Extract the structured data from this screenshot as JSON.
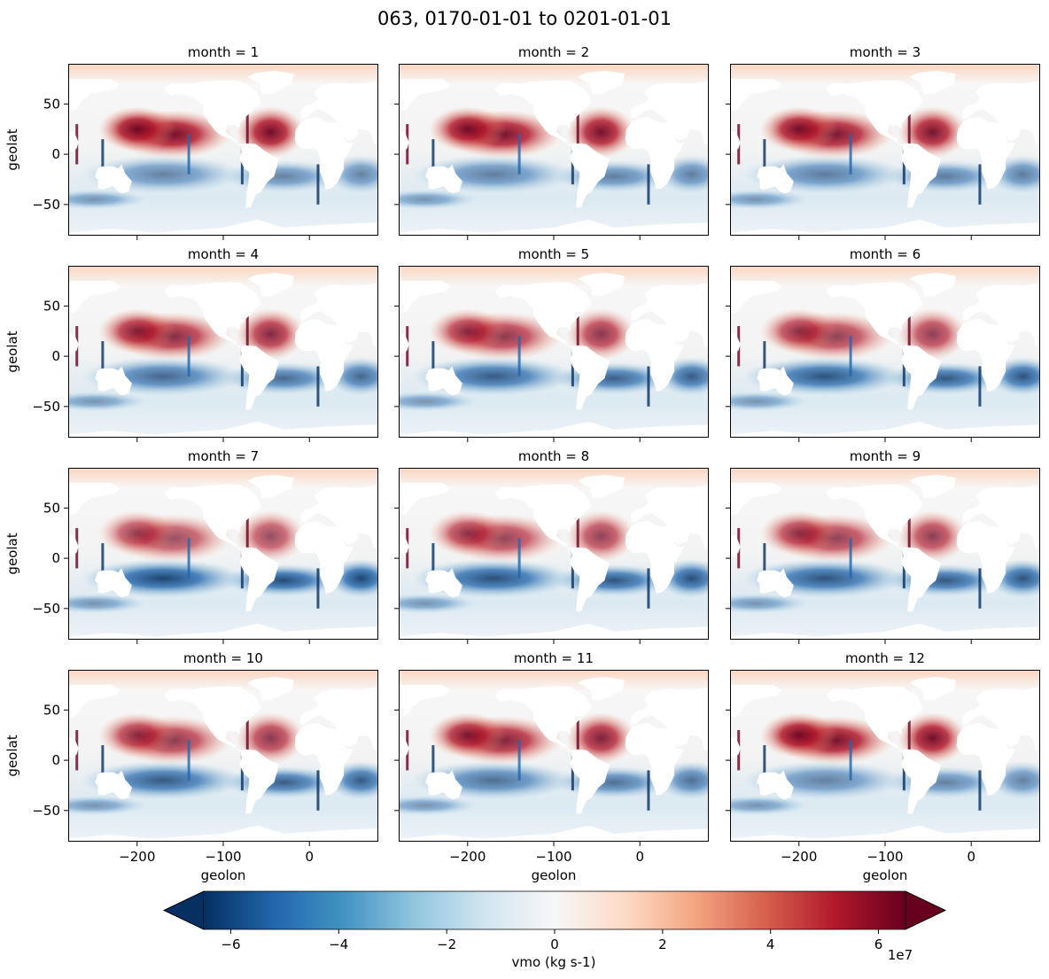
{
  "chart_data": {
    "type": "heatmap",
    "title": "063, 0170-01-01 to 0201-01-01",
    "facet_variable": "month",
    "panel_titles": [
      "month = 1",
      "month = 2",
      "month = 3",
      "month = 4",
      "month = 5",
      "month = 6",
      "month = 7",
      "month = 8",
      "month = 9",
      "month = 10",
      "month = 11",
      "month = 12"
    ],
    "seasonal_intensity": [
      1.0,
      0.95,
      0.92,
      0.72,
      0.6,
      0.52,
      0.38,
      0.48,
      0.52,
      0.58,
      0.8,
      0.98
    ],
    "xlabel": "geolon",
    "ylabel": "geolat",
    "xlim": [
      -280,
      80
    ],
    "ylim": [
      -81,
      90
    ],
    "xticks": [
      -200,
      -100,
      0
    ],
    "xtick_labels": [
      "−200",
      "−100",
      "0"
    ],
    "yticks": [
      50,
      0,
      -50
    ],
    "ytick_labels": [
      "50",
      "0",
      "−50"
    ],
    "colorbar": {
      "label": "vmo (kg s-1)",
      "range": [
        -65000000.0,
        65000000.0
      ],
      "ticks": [
        -6,
        -4,
        -2,
        0,
        2,
        4,
        6
      ],
      "tick_labels": [
        "−6",
        "−4",
        "−2",
        "0",
        "2",
        "4",
        "6"
      ],
      "multiplier": "1e7",
      "extend": "both",
      "colormap": "RdBu_r",
      "colors": [
        "#053061",
        "#2166ac",
        "#4393c3",
        "#92c5de",
        "#d1e5f0",
        "#f7f7f7",
        "#fddbc7",
        "#f4a582",
        "#d6604d",
        "#b2182b",
        "#67001f"
      ]
    }
  }
}
